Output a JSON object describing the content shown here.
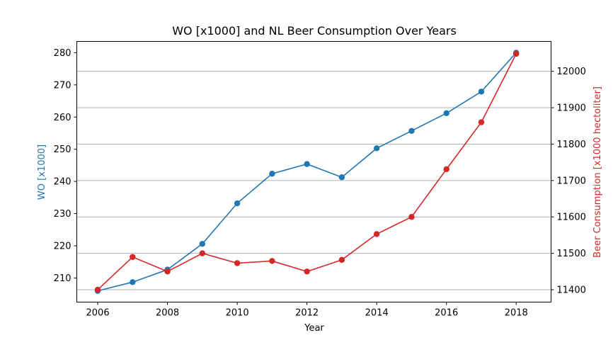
{
  "chart_data": {
    "type": "line",
    "title": "WO [x1000] and NL Beer Consumption Over Years",
    "xlabel": "Year",
    "ylabel_left": "WO [x1000]",
    "ylabel_right": "Beer Consumption [x1000 hectoliter]",
    "x": [
      2006,
      2007,
      2008,
      2009,
      2010,
      2011,
      2012,
      2013,
      2014,
      2015,
      2016,
      2017,
      2018
    ],
    "xlim": [
      2005.4,
      2019.0
    ],
    "xticks": [
      "2006",
      "2008",
      "2010",
      "2012",
      "2014",
      "2016",
      "2018"
    ],
    "ylim_left": [
      202.5,
      283.5
    ],
    "yticks_left": [
      "210",
      "220",
      "230",
      "240",
      "250",
      "260",
      "270",
      "280"
    ],
    "ylim_right": [
      11366,
      12082
    ],
    "yticks_right": [
      "11400",
      "11500",
      "11600",
      "11700",
      "11800",
      "11900",
      "12000"
    ],
    "grid": "right-axis horizontal",
    "series": [
      {
        "name": "WO [x1000]",
        "axis": "left",
        "color": "#1f77b4",
        "values": [
          206.0,
          208.7,
          212.6,
          220.6,
          233.2,
          242.4,
          245.4,
          241.3,
          250.3,
          255.7,
          261.2,
          267.9,
          280.0
        ]
      },
      {
        "name": "Beer Consumption [x1000 hectoliter]",
        "axis": "right",
        "color": "#d62728",
        "values": [
          11400,
          11490,
          11450,
          11500,
          11473,
          11479,
          11450,
          11482,
          11553,
          11600,
          11731,
          11860,
          12048
        ]
      }
    ]
  }
}
